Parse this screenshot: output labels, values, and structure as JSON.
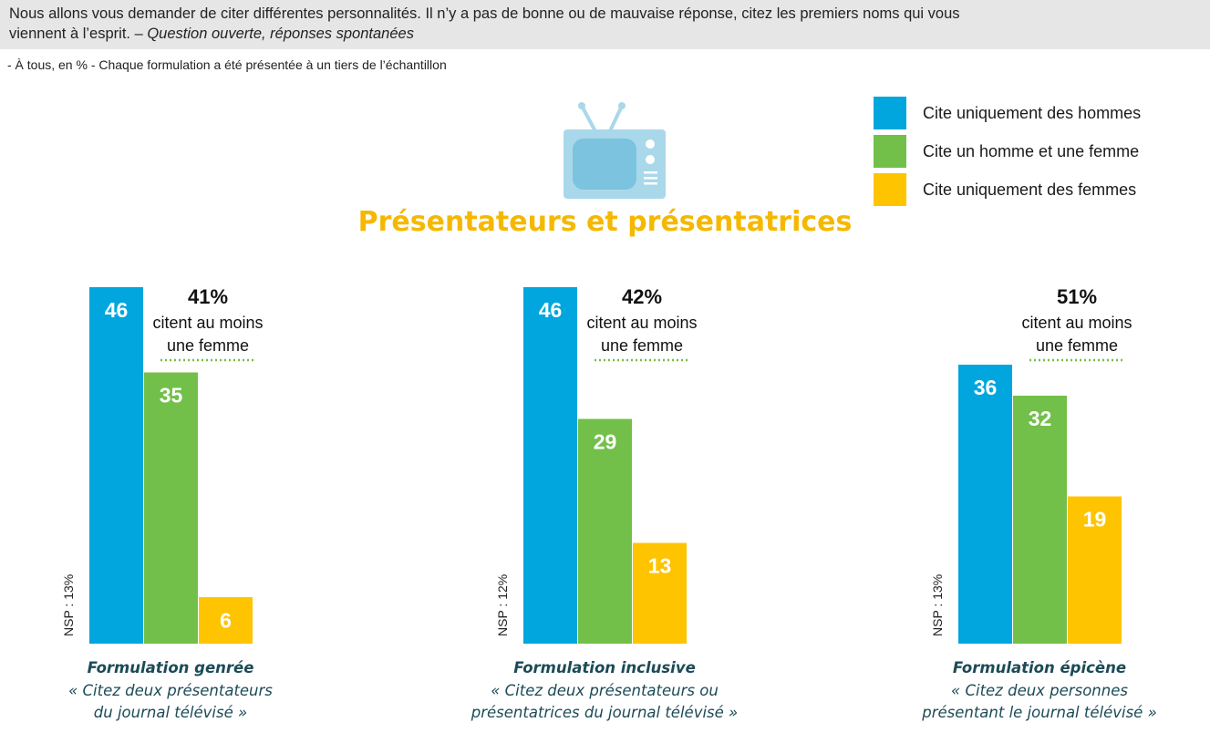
{
  "header": {
    "question_line1": "Nous allons vous demander de citer différentes personnalités. Il n’y a pas de bonne ou de mauvaise réponse, citez les premiers noms qui vous",
    "question_line2_plain": "viennent à l’esprit. – ",
    "question_line2_italic": "Question ouverte, réponses spontanées",
    "base_note": "- À tous, en % - Chaque formulation a été présentée à un tiers de l’échantillon"
  },
  "icon": "tv-icon",
  "colors": {
    "hommes": "#00a6dd",
    "homme_et_femme": "#72c04a",
    "femmes": "#ffc400",
    "title": "#f5b800",
    "formulation_text": "#1c4a57",
    "dotted_underline": "#72c04a"
  },
  "chart_data": {
    "type": "bar",
    "title": "Présentateurs et présentatrices",
    "legend": {
      "position": "top-right",
      "entries": [
        "Cite uniquement des hommes",
        "Cite un homme et une femme",
        "Cite uniquement des femmes"
      ]
    },
    "series": [
      {
        "name": "Cite uniquement des hommes",
        "values": [
          46,
          46,
          36
        ]
      },
      {
        "name": "Cite un homme et une femme",
        "values": [
          35,
          29,
          32
        ]
      },
      {
        "name": "Cite uniquement des femmes",
        "values": [
          6,
          13,
          19
        ]
      }
    ],
    "unit": "%",
    "ylim": [
      0,
      46
    ],
    "grid": false,
    "groups": [
      {
        "pct": "41%",
        "cite_line1": "citent au moins",
        "cite_line2": "une femme",
        "nsp": "NSP : 13%",
        "form_title": "Formulation genrée",
        "form_line1": "« Citez deux présentateurs",
        "form_line2": "du journal télévisé »"
      },
      {
        "pct": "42%",
        "cite_line1": "citent au moins",
        "cite_line2": "une femme",
        "nsp": "NSP : 12%",
        "form_title": "Formulation inclusive",
        "form_line1": "« Citez deux présentateurs ou",
        "form_line2": "présentatrices du journal télévisé »"
      },
      {
        "pct": "51%",
        "cite_line1": "citent au moins",
        "cite_line2": "une femme",
        "nsp": "NSP : 13%",
        "form_title": "Formulation épicène",
        "form_line1": "« Citez deux personnes",
        "form_line2": "présentant le journal télévisé »"
      }
    ]
  }
}
